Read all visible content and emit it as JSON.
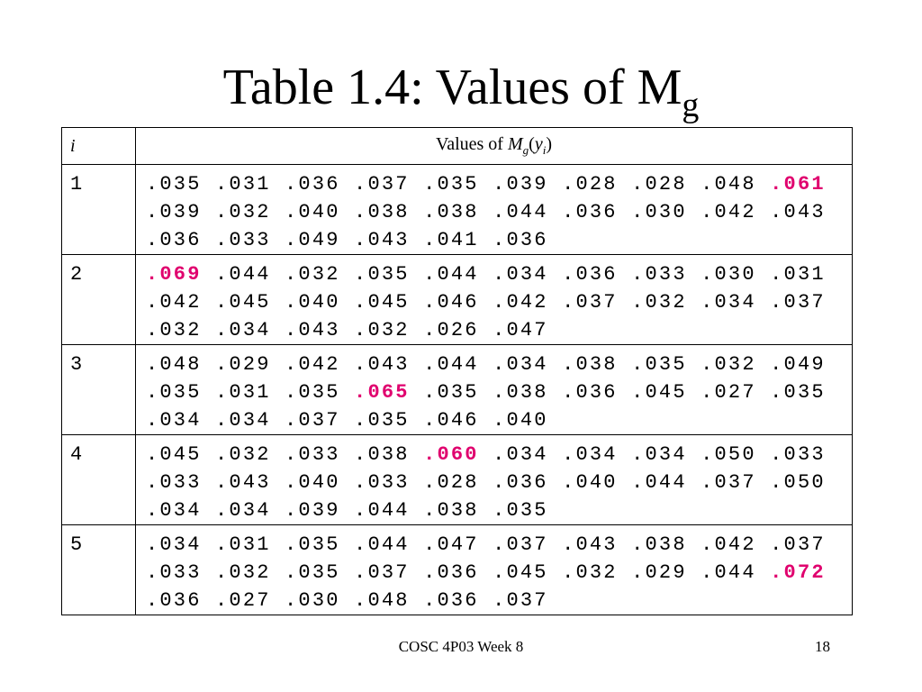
{
  "title": {
    "text": "Table 1.4: Values of M",
    "subscript": "g"
  },
  "table": {
    "header": {
      "col1": "i",
      "col2": {
        "prefix": "Values of ",
        "var": "M",
        "var_sub": "g",
        "open": "(",
        "arg": "y",
        "arg_sub": "i",
        "close": ")"
      }
    },
    "highlight_color": "#e0006e",
    "rows": [
      {
        "i": "1",
        "highlighted": 9,
        "values": [
          ".035",
          ".031",
          ".036",
          ".037",
          ".035",
          ".039",
          ".028",
          ".028",
          ".048",
          ".061",
          ".039",
          ".032",
          ".040",
          ".038",
          ".038",
          ".044",
          ".036",
          ".030",
          ".042",
          ".043",
          ".036",
          ".033",
          ".049",
          ".043",
          ".041",
          ".036"
        ]
      },
      {
        "i": "2",
        "highlighted": 0,
        "values": [
          ".069",
          ".044",
          ".032",
          ".035",
          ".044",
          ".034",
          ".036",
          ".033",
          ".030",
          ".031",
          ".042",
          ".045",
          ".040",
          ".045",
          ".046",
          ".042",
          ".037",
          ".032",
          ".034",
          ".037",
          ".032",
          ".034",
          ".043",
          ".032",
          ".026",
          ".047"
        ]
      },
      {
        "i": "3",
        "highlighted": 13,
        "values": [
          ".048",
          ".029",
          ".042",
          ".043",
          ".044",
          ".034",
          ".038",
          ".035",
          ".032",
          ".049",
          ".035",
          ".031",
          ".035",
          ".065",
          ".035",
          ".038",
          ".036",
          ".045",
          ".027",
          ".035",
          ".034",
          ".034",
          ".037",
          ".035",
          ".046",
          ".040"
        ]
      },
      {
        "i": "4",
        "highlighted": 4,
        "values": [
          ".045",
          ".032",
          ".033",
          ".038",
          ".060",
          ".034",
          ".034",
          ".034",
          ".050",
          ".033",
          ".033",
          ".043",
          ".040",
          ".033",
          ".028",
          ".036",
          ".040",
          ".044",
          ".037",
          ".050",
          ".034",
          ".034",
          ".039",
          ".044",
          ".038",
          ".035"
        ]
      },
      {
        "i": "5",
        "highlighted": 19,
        "values": [
          ".034",
          ".031",
          ".035",
          ".044",
          ".047",
          ".037",
          ".043",
          ".038",
          ".042",
          ".037",
          ".033",
          ".032",
          ".035",
          ".037",
          ".036",
          ".045",
          ".032",
          ".029",
          ".044",
          ".072",
          ".036",
          ".027",
          ".030",
          ".048",
          ".036",
          ".037"
        ]
      }
    ]
  },
  "footer": {
    "center": "COSC 4P03 Week 8",
    "page": "18"
  }
}
